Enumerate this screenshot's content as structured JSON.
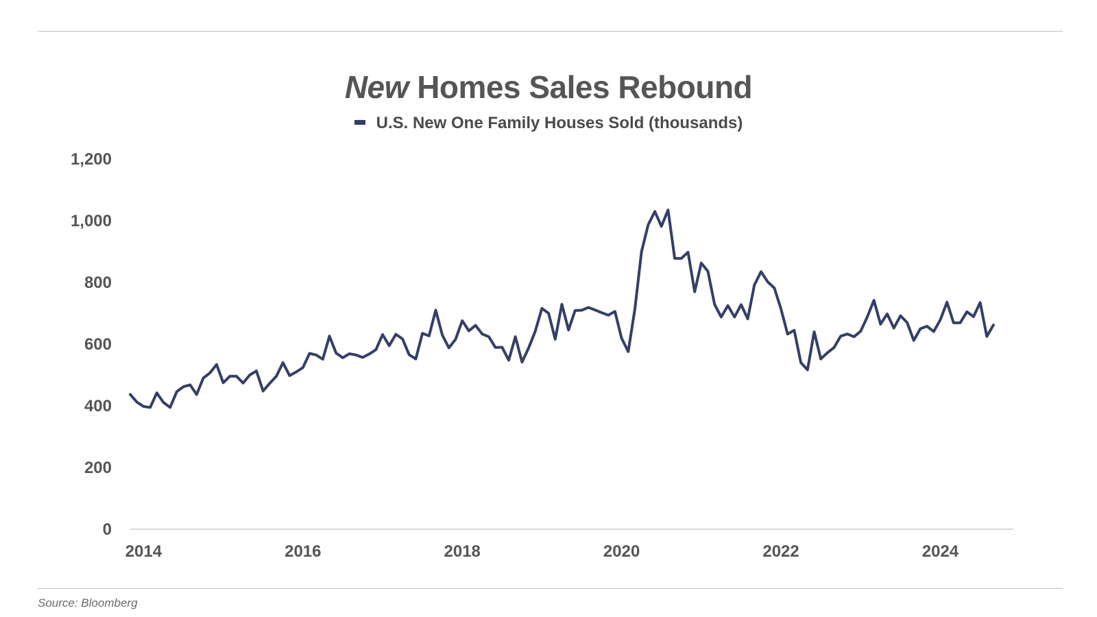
{
  "header": {
    "title_em": "New",
    "title_rest": " Homes Sales Rebound"
  },
  "source": "Source: Bloomberg",
  "chart_data": {
    "type": "line",
    "title": "New Homes Sales Rebound",
    "xlabel": "",
    "ylabel": "",
    "ylim": [
      0,
      1200
    ],
    "xlim": [
      "2013-11",
      "2024-12"
    ],
    "y_ticks": [
      "0",
      "200",
      "400",
      "600",
      "800",
      "1,000",
      "1,200"
    ],
    "y_tick_values": [
      0,
      200,
      400,
      600,
      800,
      1000,
      1200
    ],
    "x_ticks": [
      "2014",
      "2016",
      "2018",
      "2020",
      "2022",
      "2024"
    ],
    "grid": false,
    "legend_position": "top-center",
    "colors": {
      "series": "#353f66",
      "axis": "#d9d9d9",
      "text": "#555555"
    },
    "series": [
      {
        "name": "U.S. New One Family Houses Sold (thousands)",
        "start": "2013-11",
        "frequency": "monthly",
        "values": [
          437,
          412,
          398,
          395,
          442,
          411,
          395,
          446,
          462,
          468,
          437,
          490,
          507,
          534,
          475,
          496,
          496,
          474,
          500,
          513,
          448,
          473,
          496,
          540,
          498,
          510,
          524,
          570,
          565,
          551,
          626,
          571,
          556,
          569,
          565,
          557,
          568,
          582,
          631,
          595,
          632,
          617,
          566,
          552,
          635,
          627,
          710,
          629,
          588,
          616,
          676,
          643,
          661,
          633,
          624,
          589,
          590,
          548,
          624,
          542,
          588,
          642,
          716,
          700,
          616,
          729,
          646,
          709,
          710,
          719,
          711,
          702,
          694,
          706,
          619,
          576,
          714,
          900,
          987,
          1030,
          982,
          1035,
          878,
          878,
          898,
          770,
          863,
          836,
          729,
          688,
          725,
          688,
          728,
          682,
          792,
          835,
          802,
          782,
          714,
          633,
          645,
          540,
          517,
          640,
          552,
          572,
          589,
          626,
          633,
          624,
          642,
          688,
          742,
          665,
          698,
          652,
          692,
          670,
          612,
          650,
          658,
          641,
          679,
          736,
          669,
          669,
          705,
          689,
          735,
          625,
          662
        ]
      }
    ]
  }
}
